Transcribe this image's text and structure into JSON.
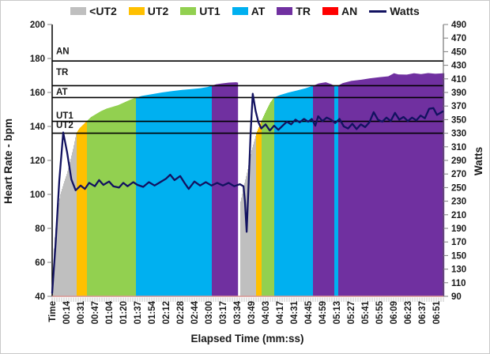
{
  "legend": {
    "items": [
      {
        "label": "<UT2",
        "color": "#BFBFBF",
        "type": "swatch"
      },
      {
        "label": "UT2",
        "color": "#FFC000",
        "type": "swatch"
      },
      {
        "label": "UT1",
        "color": "#92D050",
        "type": "swatch"
      },
      {
        "label": "AT",
        "color": "#00B0F0",
        "type": "swatch"
      },
      {
        "label": "TR",
        "color": "#7030A0",
        "type": "swatch"
      },
      {
        "label": "AN",
        "color": "#FF0000",
        "type": "swatch"
      },
      {
        "label": "Watts",
        "color": "#121260",
        "type": "line"
      }
    ]
  },
  "chart_data": {
    "type": "area",
    "x_axis": {
      "title": "Elapsed Time (mm:ss)",
      "labels": [
        "Time",
        "00:14",
        "00:31",
        "00:47",
        "01:04",
        "01:20",
        "01:37",
        "01:54",
        "02:12",
        "02:28",
        "02:44",
        "03:00",
        "03:17",
        "03:34",
        "03:49",
        "04:03",
        "04:17",
        "04:31",
        "04:45",
        "04:59",
        "05:13",
        "05:27",
        "05:41",
        "05:55",
        "06:09",
        "06:23",
        "06:37",
        "06:51"
      ]
    },
    "y_left": {
      "title": "Heart Rate - bpm",
      "min": 40,
      "max": 200,
      "step": 20
    },
    "y_right": {
      "title": "Watts",
      "min": 90,
      "max": 490,
      "step": 20
    },
    "zones": {
      "boundaries_bpm": [
        136,
        143,
        157,
        164,
        178.5
      ],
      "colors": {
        "lt_ut2": "#BFBFBF",
        "ut2": "#FFC000",
        "ut1": "#92D050",
        "at": "#00B0F0",
        "tr": "#7030A0",
        "an": "#FF0000"
      },
      "labels": [
        {
          "text": "AN",
          "bpm": 184.5
        },
        {
          "text": "TR",
          "bpm": 172
        },
        {
          "text": "AT",
          "bpm": 160.5
        },
        {
          "text": "UT1",
          "bpm": 146.5
        },
        {
          "text": "UT2",
          "bpm": 141
        }
      ],
      "line_color": "#000000"
    },
    "baseline_color": "#d99594",
    "hr_area": {
      "name": "Heart Rate (zone-colored area)",
      "points": [
        [
          0,
          45
        ],
        [
          0.12,
          70
        ],
        [
          0.3,
          88
        ],
        [
          0.55,
          100
        ],
        [
          0.8,
          107
        ],
        [
          1,
          112
        ],
        [
          1.25,
          120
        ],
        [
          1.45,
          127
        ],
        [
          1.67,
          136
        ],
        [
          1.9,
          139
        ],
        [
          2.15,
          141
        ],
        [
          2.39,
          143
        ],
        [
          2.7,
          145.5
        ],
        [
          3,
          147
        ],
        [
          3.4,
          149
        ],
        [
          3.8,
          150.5
        ],
        [
          4.2,
          151.5
        ],
        [
          4.6,
          152.5
        ],
        [
          5,
          154
        ],
        [
          5.4,
          155.5
        ],
        [
          5.85,
          157
        ],
        [
          6.3,
          158
        ],
        [
          7,
          159
        ],
        [
          7.7,
          160
        ],
        [
          8.4,
          160.8
        ],
        [
          9.1,
          161.5
        ],
        [
          9.8,
          162
        ],
        [
          10.4,
          162.5
        ],
        [
          10.9,
          163.2
        ],
        [
          11.2,
          164
        ],
        [
          11.5,
          164.8
        ],
        [
          11.9,
          165.3
        ],
        [
          12.4,
          165.8
        ],
        [
          12.9,
          166
        ],
        [
          13,
          165.8
        ],
        [
          13.05,
          null
        ],
        [
          13.18,
          null
        ],
        [
          13.2,
          95
        ],
        [
          13.45,
          105
        ],
        [
          13.7,
          114
        ],
        [
          14,
          126
        ],
        [
          14.33,
          136
        ],
        [
          14.67,
          143
        ],
        [
          15,
          149
        ],
        [
          15.3,
          154
        ],
        [
          15.56,
          157
        ],
        [
          16,
          158.5
        ],
        [
          16.6,
          160
        ],
        [
          17.2,
          161.2
        ],
        [
          17.8,
          162.5
        ],
        [
          18.33,
          164
        ],
        [
          18.7,
          165.3
        ],
        [
          19.2,
          166
        ],
        [
          19.6,
          164.8
        ],
        [
          19.78,
          164
        ],
        [
          19.92,
          163.5
        ],
        [
          20.06,
          164
        ],
        [
          20.4,
          165.5
        ],
        [
          21,
          166.8
        ],
        [
          21.7,
          167.5
        ],
        [
          22.3,
          168.3
        ],
        [
          23,
          169
        ],
        [
          23.6,
          169.5
        ],
        [
          24,
          171.3
        ],
        [
          24.3,
          170.6
        ],
        [
          24.9,
          170.5
        ],
        [
          25.4,
          171.3
        ],
        [
          25.9,
          170.8
        ],
        [
          26.4,
          171.4
        ],
        [
          26.9,
          171
        ],
        [
          27.5,
          171.3
        ]
      ]
    },
    "watts_line": {
      "name": "Watts",
      "color": "#121260",
      "points": [
        [
          0,
          95
        ],
        [
          0.25,
          170
        ],
        [
          0.5,
          260
        ],
        [
          0.78,
          331
        ],
        [
          1.05,
          302
        ],
        [
          1.35,
          262
        ],
        [
          1.65,
          246
        ],
        [
          2,
          253
        ],
        [
          2.3,
          248
        ],
        [
          2.6,
          257
        ],
        [
          3,
          252
        ],
        [
          3.3,
          261
        ],
        [
          3.6,
          254
        ],
        [
          4,
          259
        ],
        [
          4.3,
          252
        ],
        [
          4.7,
          250
        ],
        [
          5,
          257
        ],
        [
          5.3,
          252
        ],
        [
          5.7,
          258
        ],
        [
          6,
          254
        ],
        [
          6.4,
          251
        ],
        [
          6.8,
          258
        ],
        [
          7.2,
          253
        ],
        [
          7.6,
          258
        ],
        [
          8,
          263
        ],
        [
          8.3,
          269
        ],
        [
          8.6,
          261
        ],
        [
          9,
          267
        ],
        [
          9.3,
          257
        ],
        [
          9.6,
          248
        ],
        [
          10,
          259
        ],
        [
          10.4,
          253
        ],
        [
          10.8,
          258
        ],
        [
          11.2,
          253
        ],
        [
          11.6,
          257
        ],
        [
          12,
          253
        ],
        [
          12.4,
          257
        ],
        [
          12.8,
          252
        ],
        [
          13.2,
          255
        ],
        [
          13.45,
          252
        ],
        [
          13.55,
          230
        ],
        [
          13.67,
          185
        ],
        [
          13.8,
          250
        ],
        [
          13.95,
          330
        ],
        [
          14.1,
          388
        ],
        [
          14.3,
          363
        ],
        [
          14.5,
          346
        ],
        [
          14.7,
          337
        ],
        [
          15,
          343
        ],
        [
          15.3,
          334
        ],
        [
          15.6,
          341
        ],
        [
          15.9,
          335
        ],
        [
          16.2,
          341
        ],
        [
          16.5,
          347
        ],
        [
          16.8,
          343
        ],
        [
          17.1,
          350
        ],
        [
          17.4,
          346
        ],
        [
          17.7,
          351
        ],
        [
          18,
          347
        ],
        [
          18.25,
          351
        ],
        [
          18.5,
          341
        ],
        [
          18.7,
          355
        ],
        [
          19,
          348
        ],
        [
          19.3,
          353
        ],
        [
          19.6,
          350
        ],
        [
          19.9,
          345
        ],
        [
          20.2,
          351
        ],
        [
          20.5,
          340
        ],
        [
          20.8,
          337
        ],
        [
          21.1,
          344
        ],
        [
          21.4,
          336
        ],
        [
          21.7,
          343
        ],
        [
          22,
          339
        ],
        [
          22.3,
          346
        ],
        [
          22.6,
          361
        ],
        [
          22.9,
          350
        ],
        [
          23.2,
          347
        ],
        [
          23.5,
          353
        ],
        [
          23.8,
          348
        ],
        [
          24.1,
          360
        ],
        [
          24.4,
          350
        ],
        [
          24.7,
          354
        ],
        [
          25,
          348
        ],
        [
          25.3,
          353
        ],
        [
          25.6,
          349
        ],
        [
          25.9,
          356
        ],
        [
          26.2,
          352
        ],
        [
          26.5,
          366
        ],
        [
          26.8,
          367
        ],
        [
          27.05,
          357
        ],
        [
          27.3,
          360
        ],
        [
          27.45,
          362
        ]
      ]
    }
  }
}
